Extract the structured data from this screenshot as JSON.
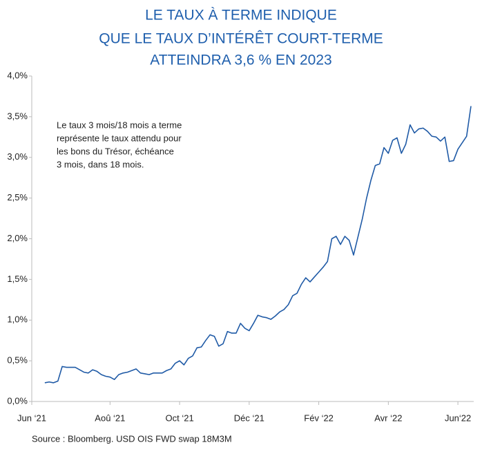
{
  "chart_data": {
    "type": "line",
    "title": [
      "LE TAUX À TERME INDIQUE",
      "QUE LE TAUX D’INTÉRÊT COURT-TERME",
      "ATTEINDRA 3,6 % EN 2023"
    ],
    "annotation": [
      "Le taux 3 mois/18 mois a terme",
      "représente le taux attendu pour",
      "les bons du Trésor, échéance",
      "3 mois, dans 18 mois."
    ],
    "source": "Source : Bloomberg. USD OIS FWD swap 18M3M",
    "categories": [
      "Jun ‘21",
      null,
      null,
      null,
      null,
      null,
      null,
      null,
      null,
      null,
      null,
      null,
      null,
      null,
      null,
      null,
      null,
      null,
      "Aoû ‘21",
      null,
      null,
      null,
      null,
      null,
      null,
      null,
      null,
      null,
      null,
      null,
      null,
      null,
      null,
      null,
      "Oct ‘21",
      null,
      null,
      null,
      null,
      null,
      null,
      null,
      null,
      null,
      null,
      null,
      null,
      null,
      null,
      null,
      "Déc ‘21",
      null,
      null,
      null,
      null,
      null,
      null,
      null,
      null,
      null,
      null,
      null,
      null,
      null,
      null,
      null,
      "Fév ‘22",
      null,
      null,
      null,
      null,
      null,
      null,
      null,
      null,
      null,
      null,
      null,
      null,
      null,
      null,
      null,
      "Avr ‘22",
      null,
      null,
      null,
      null,
      null,
      null,
      null,
      null,
      null,
      null,
      null,
      null,
      null,
      null,
      null,
      "Jun‘22",
      null,
      null,
      null
    ],
    "series": [
      {
        "color": "#1f5aa6",
        "values": [
          null,
          null,
          null,
          0.23,
          0.24,
          0.23,
          0.25,
          0.43,
          0.42,
          0.42,
          0.42,
          0.39,
          0.36,
          0.35,
          0.39,
          0.37,
          0.33,
          0.31,
          0.3,
          0.27,
          0.33,
          0.35,
          0.36,
          0.38,
          0.4,
          0.35,
          0.34,
          0.33,
          0.35,
          0.35,
          0.35,
          0.38,
          0.4,
          0.47,
          0.5,
          0.45,
          0.53,
          0.56,
          0.66,
          0.67,
          0.75,
          0.82,
          0.8,
          0.68,
          0.71,
          0.86,
          0.84,
          0.84,
          0.96,
          0.9,
          0.87,
          0.96,
          1.06,
          1.04,
          1.03,
          1.01,
          1.05,
          1.1,
          1.13,
          1.19,
          1.3,
          1.33,
          1.44,
          1.52,
          1.47,
          1.53,
          1.59,
          1.65,
          1.72,
          2.0,
          2.03,
          1.93,
          2.03,
          1.98,
          1.8,
          2.02,
          2.24,
          2.5,
          2.72,
          2.9,
          2.92,
          3.12,
          3.05,
          3.21,
          3.24,
          3.05,
          3.16,
          3.4,
          3.3,
          3.35,
          3.36,
          3.32,
          3.26,
          3.25,
          3.2,
          3.25,
          2.95,
          2.96,
          3.1,
          3.18,
          3.26,
          3.63
        ]
      }
    ],
    "ylim": [
      0,
      4
    ],
    "yticks": [
      {
        "value": 0,
        "label": "0,0%"
      },
      {
        "value": 0.5,
        "label": "0,5%"
      },
      {
        "value": 1,
        "label": "1,0%"
      },
      {
        "value": 1.5,
        "label": "1,5%"
      },
      {
        "value": 2,
        "label": "2,0%"
      },
      {
        "value": 2.5,
        "label": "2,5%"
      },
      {
        "value": 3,
        "label": "3,0%"
      },
      {
        "value": 3.5,
        "label": "3,5%"
      },
      {
        "value": 4,
        "label": "4,0%"
      }
    ],
    "grid": false
  }
}
